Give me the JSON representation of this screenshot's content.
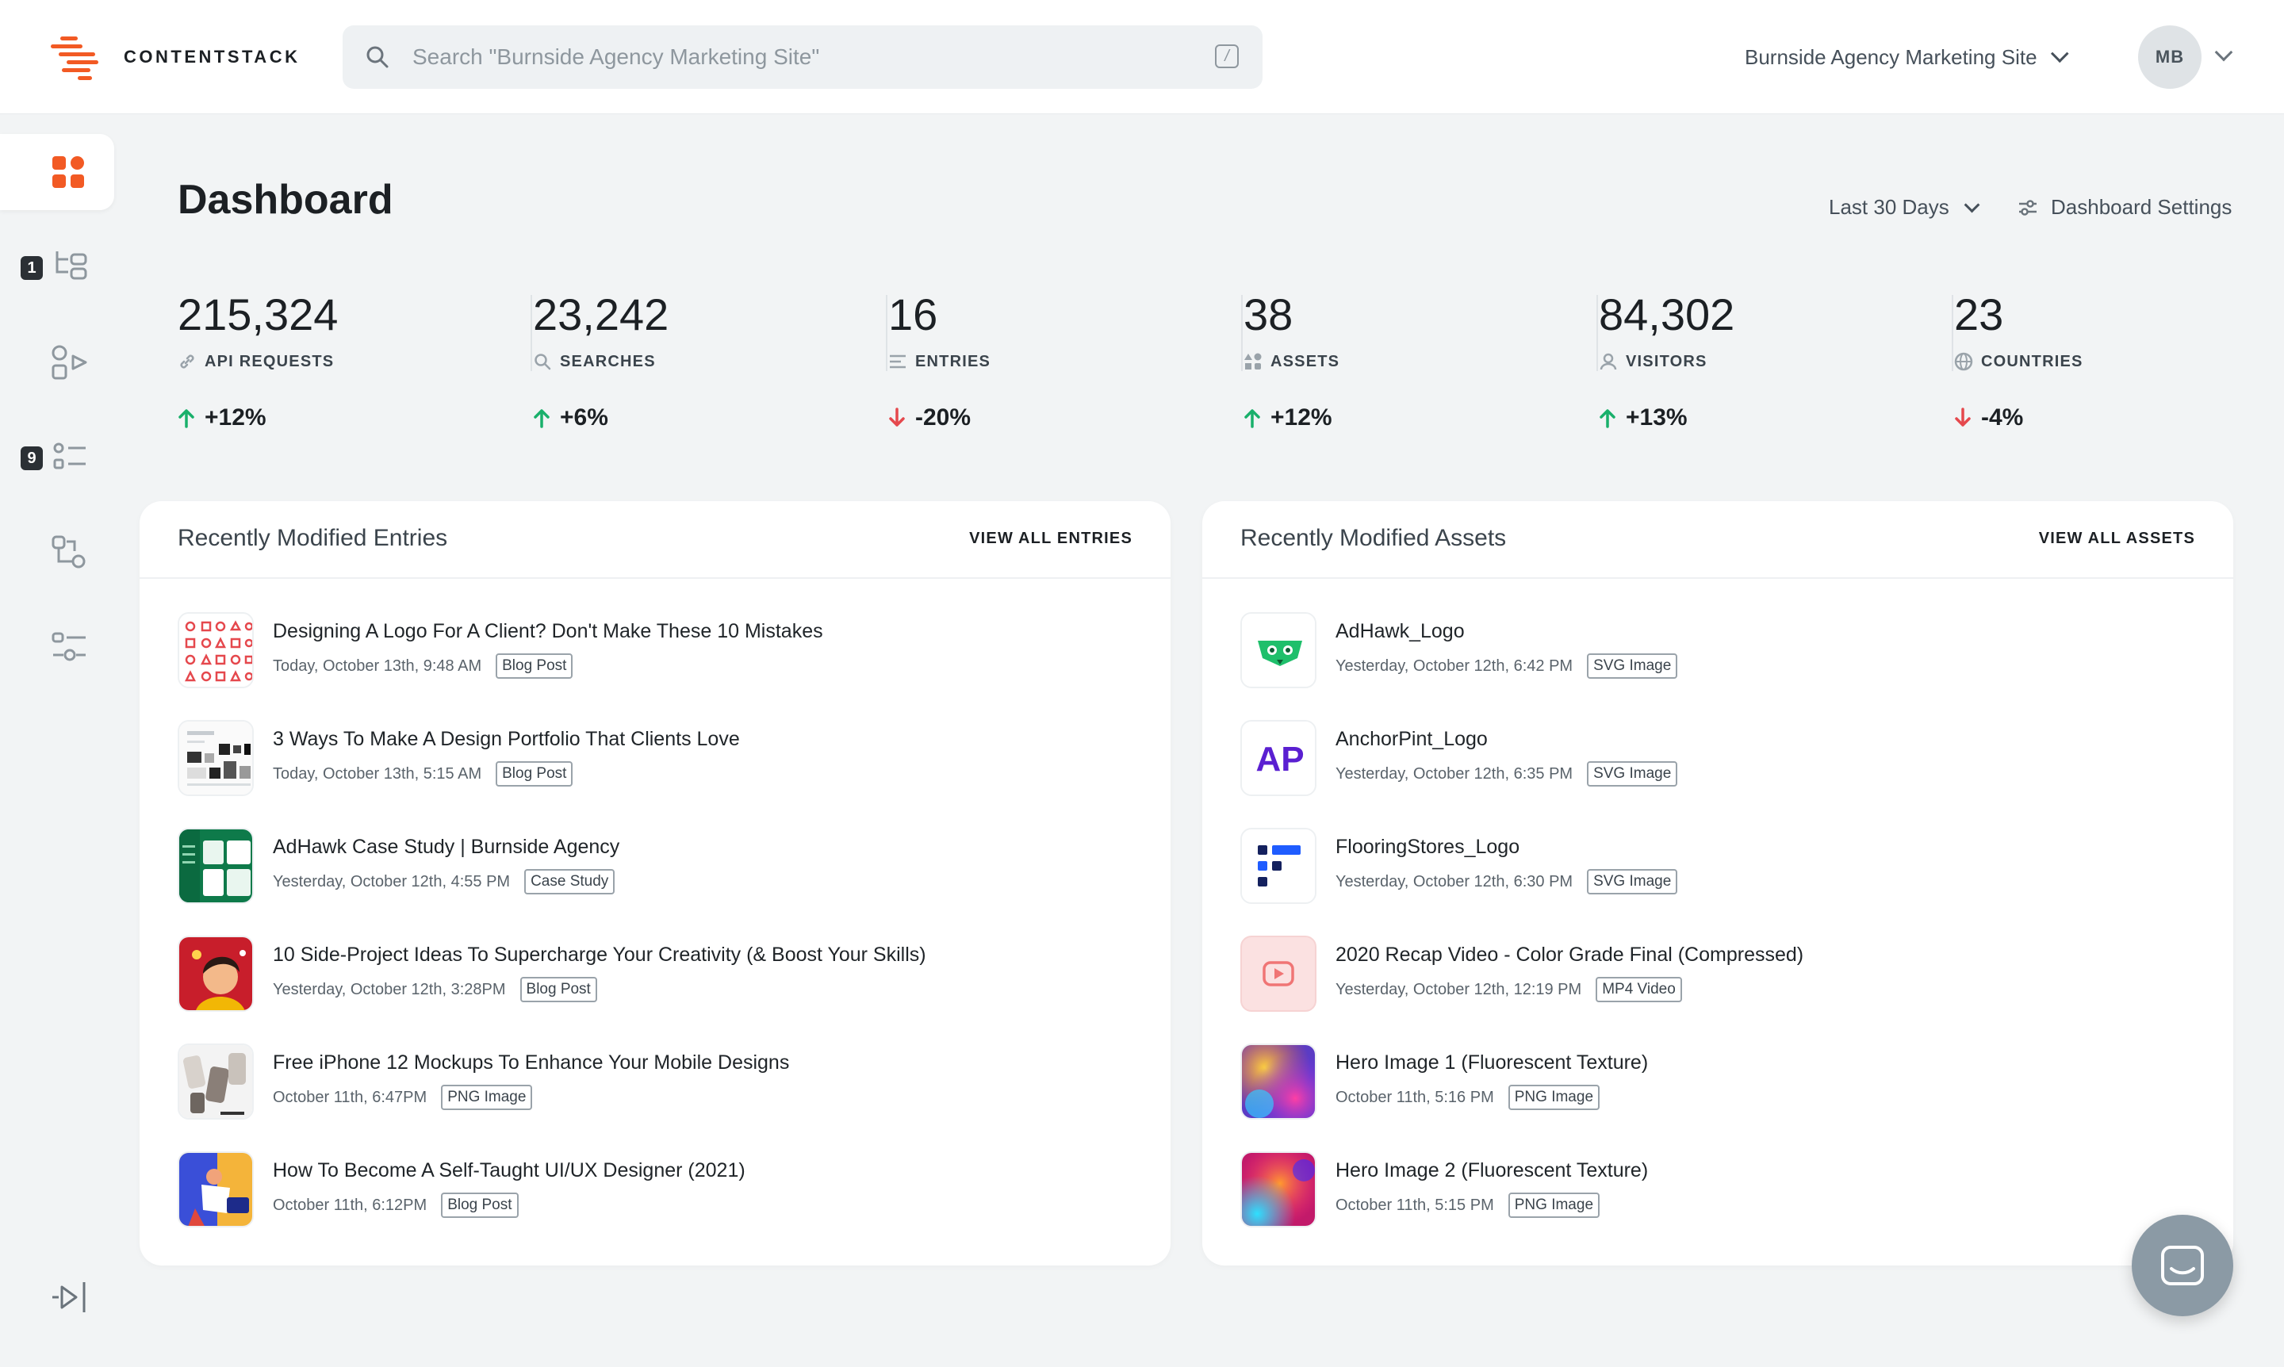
{
  "brand": {
    "name": "CONTENTSTACK",
    "accent": "#f25a24"
  },
  "search": {
    "placeholder": "Search \"Burnside Agency Marketing Site\"",
    "shortcut": "/"
  },
  "header": {
    "site_name": "Burnside Agency Marketing Site",
    "avatar_initials": "MB"
  },
  "sidebar": {
    "items": [
      {
        "icon": "dashboard-icon",
        "active": true
      },
      {
        "icon": "content-tree-icon",
        "badge": "1"
      },
      {
        "icon": "workflow-icon"
      },
      {
        "icon": "tasks-list-icon",
        "badge": "9"
      },
      {
        "icon": "releases-icon"
      },
      {
        "icon": "settings-sliders-icon"
      }
    ],
    "collapse_icon": "collapse-sidebar-icon"
  },
  "page": {
    "title": "Dashboard",
    "range_label": "Last 30 Days",
    "settings_label": "Dashboard Settings"
  },
  "stats": [
    {
      "value": "215,324",
      "label": "API REQUESTS",
      "icon": "link-icon",
      "change": "+12%",
      "direction": "up"
    },
    {
      "value": "23,242",
      "label": "SEARCHES",
      "icon": "search-icon",
      "change": "+6%",
      "direction": "up"
    },
    {
      "value": "16",
      "label": "ENTRIES",
      "icon": "lines-icon",
      "change": "-20%",
      "direction": "down"
    },
    {
      "value": "38",
      "label": "ASSETS",
      "icon": "shapes-icon",
      "change": "+12%",
      "direction": "up"
    },
    {
      "value": "84,302",
      "label": "VISITORS",
      "icon": "user-icon",
      "change": "+13%",
      "direction": "up"
    },
    {
      "value": "23",
      "label": "COUNTRIES",
      "icon": "globe-icon",
      "change": "-4%",
      "direction": "down"
    }
  ],
  "colors": {
    "up": "#19b06b",
    "down": "#e5484d"
  },
  "entries": {
    "title": "Recently Modified Entries",
    "view_all": "VIEW ALL ENTRIES",
    "items": [
      {
        "title": "Designing A Logo For A Client? Don't Make These 10 Mistakes",
        "date": "Today, October 13th, 9:48 AM",
        "tag": "Blog Post",
        "thumb": "icon-grid"
      },
      {
        "title": "3 Ways To Make A Design Portfolio That Clients Love",
        "date": "Today, October 13th, 5:15 AM",
        "tag": "Blog Post",
        "thumb": "portfolio"
      },
      {
        "title": "AdHawk Case Study | Burnside Agency",
        "date": "Yesterday, October 12th, 4:55 PM",
        "tag": "Case Study",
        "thumb": "green"
      },
      {
        "title": "10 Side-Project Ideas To Supercharge Your Creativity (& Boost Your Skills)",
        "date": "Yesterday, October 12th, 3:28PM",
        "tag": "Blog Post",
        "thumb": "illustration-red"
      },
      {
        "title": "Free iPhone 12 Mockups To Enhance Your Mobile Designs",
        "date": "October 11th, 6:47PM",
        "tag": "PNG Image",
        "thumb": "mockups"
      },
      {
        "title": "How To Become A Self-Taught UI/UX Designer (2021)",
        "date": "October 11th, 6:12PM",
        "tag": "Blog Post",
        "thumb": "illustration-blue"
      }
    ]
  },
  "assets": {
    "title": "Recently Modified Assets",
    "view_all": "VIEW ALL ASSETS",
    "items": [
      {
        "title": "AdHawk_Logo",
        "date": "Yesterday, October 12th, 6:42 PM",
        "tag": "SVG Image",
        "thumb": "adhawk"
      },
      {
        "title": "AnchorPint_Logo",
        "date": "Yesterday, October 12th, 6:35 PM",
        "tag": "SVG Image",
        "thumb": "anchorpint",
        "thumb_text": "AP"
      },
      {
        "title": "FlooringStores_Logo",
        "date": "Yesterday, October 12th, 6:30 PM",
        "tag": "SVG Image",
        "thumb": "flooring"
      },
      {
        "title": "2020 Recap Video - Color Grade Final (Compressed)",
        "date": "Yesterday, October 12th, 12:19 PM",
        "tag": "MP4 Video",
        "thumb": "video"
      },
      {
        "title": "Hero Image 1 (Fluorescent Texture)",
        "date": "October 11th, 5:16 PM",
        "tag": "PNG Image",
        "thumb": "fluoro1"
      },
      {
        "title": "Hero Image 2 (Fluorescent Texture)",
        "date": "October 11th, 5:15 PM",
        "tag": "PNG Image",
        "thumb": "fluoro2"
      }
    ]
  },
  "chat": {
    "icon": "chat-icon"
  }
}
